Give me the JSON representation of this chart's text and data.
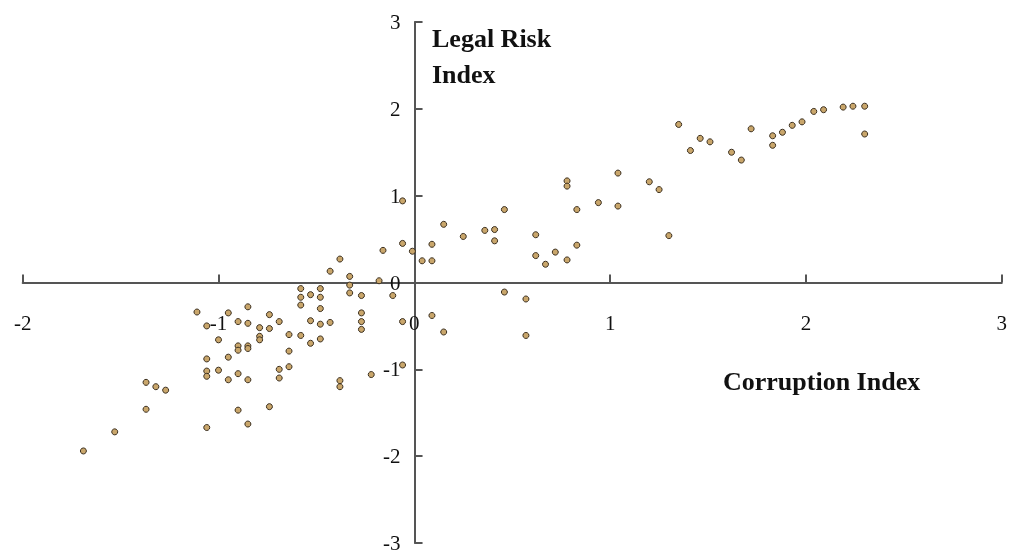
{
  "chart_data": {
    "type": "scatter",
    "xlabel": "Corruption Index",
    "ylabel": "Legal Risk Index",
    "xlim": [
      -2,
      3
    ],
    "ylim": [
      -3,
      3
    ],
    "xticks": [
      -2,
      -1,
      0,
      1,
      2,
      3
    ],
    "yticks": [
      -3,
      -2,
      -1,
      0,
      1,
      2,
      3
    ],
    "marker": "circle",
    "series": [
      {
        "color": "#c9a66b",
        "x": [
          -0.38,
          -0.43,
          -0.33,
          -0.33,
          -0.33,
          -0.27,
          -0.16,
          -0.18,
          -0.11,
          -0.58,
          -0.58,
          -0.58,
          -0.53,
          -0.48,
          -0.48,
          -0.48,
          -0.53,
          -0.48,
          -0.43,
          -0.53,
          -0.48,
          -0.64,
          -0.58,
          -0.64,
          -0.64,
          -0.69,
          -0.69,
          -0.69,
          -0.74,
          -0.74,
          -0.79,
          -0.79,
          -0.79,
          -0.85,
          -0.85,
          -0.85,
          -0.85,
          -0.9,
          -0.9,
          -0.9,
          -0.95,
          -0.95,
          -1.0,
          -1.06,
          -1.11,
          -1.06,
          -1.06,
          -1.06,
          -1.0,
          -0.95,
          -0.9,
          -0.85,
          -1.37,
          -1.32,
          -1.27,
          -1.37,
          -1.53,
          -1.69,
          -1.06,
          -0.9,
          -0.85,
          -0.74,
          -0.38,
          -0.38,
          -0.27,
          -0.27,
          -0.27,
          -0.06,
          -0.06,
          -0.22,
          -0.06,
          -0.06,
          -0.01,
          0.04,
          0.09,
          0.09,
          0.15,
          0.25,
          0.36,
          0.41,
          0.41,
          0.46,
          0.62,
          0.62,
          0.67,
          0.72,
          0.78,
          0.78,
          0.78,
          0.83,
          0.83,
          0.94,
          1.04,
          1.04,
          1.2,
          1.25,
          1.3,
          1.35,
          1.41,
          1.46,
          1.51,
          1.62,
          1.67,
          1.72,
          1.83,
          1.83,
          1.88,
          1.93,
          1.98,
          2.04,
          2.09,
          2.19,
          2.24,
          2.3,
          2.3,
          0.46,
          0.57,
          0.57,
          0.09,
          0.15
        ],
        "values": [
          0.27,
          0.13,
          0.07,
          -0.03,
          -0.12,
          -0.15,
          0.37,
          0.02,
          -0.15,
          -0.07,
          -0.17,
          -0.26,
          -0.14,
          -0.07,
          -0.17,
          -0.3,
          -0.44,
          -0.48,
          -0.46,
          -0.7,
          -0.65,
          -0.6,
          -0.61,
          -0.79,
          -0.97,
          -1.0,
          -1.1,
          -0.45,
          -0.37,
          -0.53,
          -0.52,
          -0.62,
          -0.66,
          -0.28,
          -0.47,
          -0.73,
          -0.76,
          -0.45,
          -0.73,
          -0.78,
          -0.35,
          -0.86,
          -0.66,
          -0.5,
          -0.34,
          -0.88,
          -1.02,
          -1.08,
          -1.01,
          -1.12,
          -1.05,
          -1.12,
          -1.15,
          -1.2,
          -1.24,
          -1.46,
          -1.72,
          -1.94,
          -1.67,
          -1.47,
          -1.63,
          -1.43,
          -1.13,
          -1.2,
          -0.35,
          -0.45,
          -0.54,
          -0.45,
          -0.95,
          -1.06,
          0.94,
          0.45,
          0.36,
          0.25,
          0.25,
          0.44,
          0.67,
          0.53,
          0.6,
          0.61,
          0.48,
          0.84,
          0.55,
          0.31,
          0.21,
          0.35,
          0.26,
          1.17,
          1.11,
          0.84,
          0.43,
          0.92,
          1.26,
          0.88,
          1.16,
          1.07,
          0.54,
          1.82,
          1.52,
          1.66,
          1.62,
          1.5,
          1.41,
          1.77,
          1.69,
          1.58,
          1.73,
          1.81,
          1.85,
          1.97,
          1.99,
          2.02,
          2.03,
          2.03,
          1.71,
          -0.11,
          -0.19,
          -0.61,
          -0.38,
          -0.57
        ]
      }
    ]
  }
}
